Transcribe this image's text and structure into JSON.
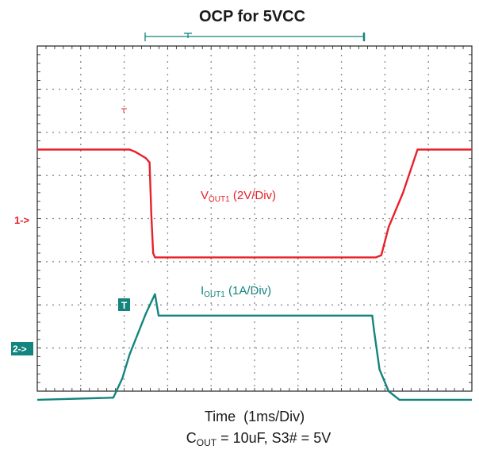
{
  "chart_data": {
    "type": "line",
    "title": "OCP for 5VCC",
    "xlabel": "Time  (1ms/Div)",
    "caption": {
      "c_symbol": "C",
      "c_sub": "OUT",
      "c_rest": " = 10uF, S3# = 5V"
    },
    "grid": true,
    "divisions": {
      "x": 10,
      "y": 8
    },
    "x_unit": "div",
    "trigger_marker": "T",
    "series": [
      {
        "name": "VOUT1",
        "label_main": "V",
        "label_sub": "OUT1",
        "label_rest": " (2V/Div)",
        "color": "#e8202a",
        "ground_marker": "1->",
        "volts_per_div": 2,
        "x": [
          0,
          2.55,
          2.7,
          3.0,
          3.1,
          3.15,
          3.2,
          3.25,
          3.3,
          9.35,
          9.5,
          9.7,
          10.1,
          10.5,
          11.5,
          12.0
        ],
        "y": [
          2.5,
          2.5,
          2.45,
          2.3,
          2.2,
          1.0,
          0.1,
          0.0,
          0.0,
          0.0,
          0.05,
          0.7,
          1.5,
          2.5,
          2.5,
          2.5
        ]
      },
      {
        "name": "IOUT1",
        "label_main": "I",
        "label_sub": "OUT1",
        "label_rest": " (1A/Div)",
        "color": "#13847e",
        "ground_marker": "2->",
        "amps_per_div": 1,
        "x": [
          0,
          2.1,
          2.35,
          2.55,
          3.0,
          3.25,
          3.3,
          3.35,
          9.25,
          9.3,
          9.45,
          9.7,
          10.0,
          12.0
        ],
        "y": [
          0.0,
          0.05,
          0.5,
          1.05,
          2.0,
          2.45,
          2.2,
          1.95,
          1.95,
          1.6,
          0.7,
          0.2,
          0.0,
          0.0
        ]
      }
    ]
  }
}
